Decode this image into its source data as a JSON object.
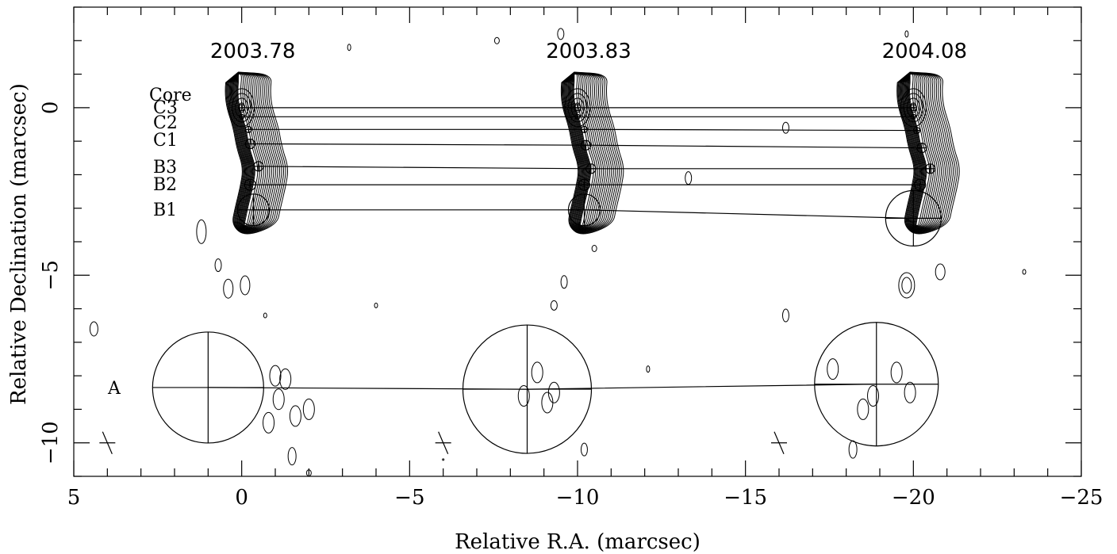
{
  "chart_data": {
    "type": "contour",
    "title": "",
    "xlabel": "Relative R.A. (marcsec)",
    "ylabel": "Relative Declination (marcsec)",
    "xlim": [
      5,
      -25
    ],
    "ylim": [
      -11,
      3
    ],
    "x_ticks": [
      5,
      0,
      -5,
      -10,
      -15,
      -20,
      -25
    ],
    "y_ticks": [
      0,
      -5,
      -10
    ],
    "x_tick_labels": [
      "5",
      "0",
      "−5",
      "−10",
      "−15",
      "−20",
      "−25"
    ],
    "y_tick_labels": [
      "0",
      "−5",
      "−10"
    ],
    "grid": false,
    "epochs": [
      {
        "label": "2003.78",
        "ra_offset": 0
      },
      {
        "label": "2003.83",
        "ra_offset": -10
      },
      {
        "label": "2004.08",
        "ra_offset": -20
      }
    ],
    "component_labels": [
      "Core",
      "C3",
      "C2",
      "C1",
      "B3",
      "B2",
      "B1",
      "A"
    ],
    "components": [
      {
        "name": "Core",
        "positions": [
          [
            0.0,
            0.0
          ],
          [
            -10.0,
            0.0
          ],
          [
            -20.0,
            0.0
          ]
        ]
      },
      {
        "name": "C3",
        "positions": [
          [
            0.0,
            -0.27
          ],
          [
            -10.0,
            -0.27
          ],
          [
            -20.0,
            -0.27
          ]
        ]
      },
      {
        "name": "C2",
        "positions": [
          [
            -0.2,
            -0.65
          ],
          [
            -10.2,
            -0.65
          ],
          [
            -20.1,
            -0.68
          ]
        ]
      },
      {
        "name": "C1",
        "positions": [
          [
            -0.25,
            -1.08
          ],
          [
            -10.25,
            -1.12
          ],
          [
            -20.25,
            -1.2
          ]
        ]
      },
      {
        "name": "B3",
        "positions": [
          [
            -0.5,
            -1.75
          ],
          [
            -10.4,
            -1.82
          ],
          [
            -20.5,
            -1.82
          ]
        ]
      },
      {
        "name": "B2",
        "positions": [
          [
            -0.25,
            -2.3
          ],
          [
            -10.2,
            -2.3
          ],
          [
            -20.2,
            -2.3
          ]
        ]
      },
      {
        "name": "B1",
        "positions": [
          [
            -0.35,
            -3.05
          ],
          [
            -10.2,
            -3.05
          ],
          [
            -20.0,
            -3.3
          ]
        ]
      },
      {
        "name": "A",
        "positions": [
          [
            1.0,
            -8.35
          ],
          [
            -8.5,
            -8.4
          ],
          [
            -18.9,
            -8.25
          ]
        ]
      }
    ]
  }
}
